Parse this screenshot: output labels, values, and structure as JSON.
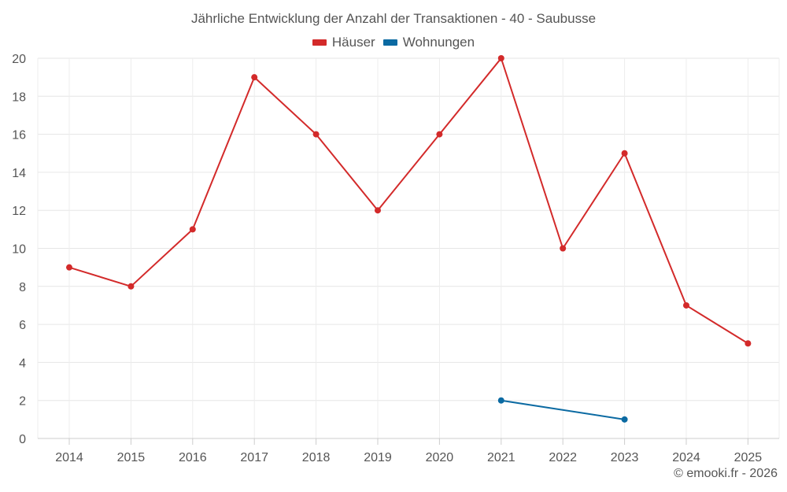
{
  "chart_data": {
    "type": "line",
    "title": "Jährliche Entwicklung der Anzahl der Transaktionen - 40 - Saubusse",
    "categories": [
      "2014",
      "2015",
      "2016",
      "2017",
      "2018",
      "2019",
      "2020",
      "2021",
      "2022",
      "2023",
      "2024",
      "2025"
    ],
    "series": [
      {
        "name": "Häuser",
        "color": "#d32a2a",
        "values": [
          9,
          8,
          11,
          19,
          16,
          12,
          16,
          20,
          10,
          15,
          7,
          5
        ]
      },
      {
        "name": "Wohnungen",
        "color": "#0b6aa2",
        "values": [
          null,
          null,
          null,
          null,
          null,
          null,
          null,
          2,
          null,
          1,
          null,
          null
        ]
      }
    ],
    "ylim": [
      0,
      20
    ],
    "yticks": [
      0,
      2,
      4,
      6,
      8,
      10,
      12,
      14,
      16,
      18,
      20
    ],
    "grid": true,
    "legend_position": "top-center"
  },
  "credit": "© emooki.fr - 2026"
}
